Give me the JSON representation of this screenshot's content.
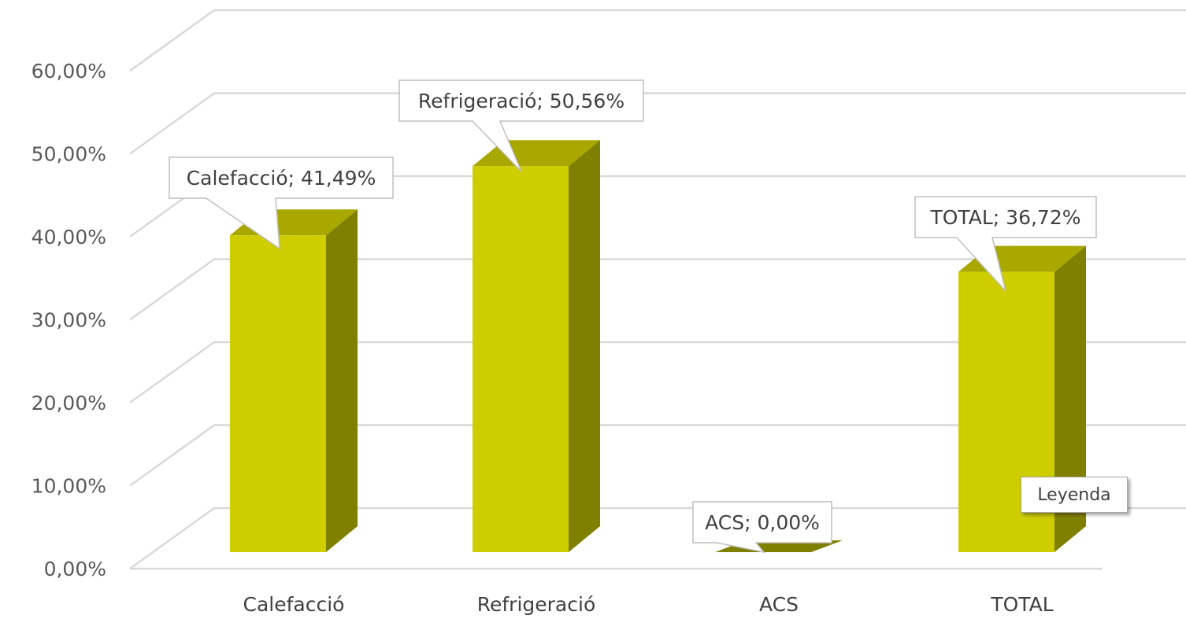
{
  "chart_data": {
    "type": "bar",
    "categories": [
      "Calefacció",
      "Refrigeració",
      "ACS",
      "TOTAL"
    ],
    "values": [
      41.49,
      50.56,
      0.0,
      36.72
    ],
    "data_labels": [
      "Calefacció; 41,49%",
      "Refrigeració; 50,56%",
      "ACS; 0,00%",
      "TOTAL; 36,72%"
    ],
    "y_ticks": [
      "0,00%",
      "10,00%",
      "20,00%",
      "30,00%",
      "40,00%",
      "50,00%",
      "60,00%"
    ],
    "ylim": [
      0,
      60
    ],
    "grid": true,
    "three_d": true,
    "colors": {
      "bar_front": "#cdcd00",
      "bar_side": "#808000",
      "bar_top": "#a8a800",
      "grid": "#d9d9d9"
    }
  },
  "tooltip": {
    "text": "Leyenda"
  }
}
